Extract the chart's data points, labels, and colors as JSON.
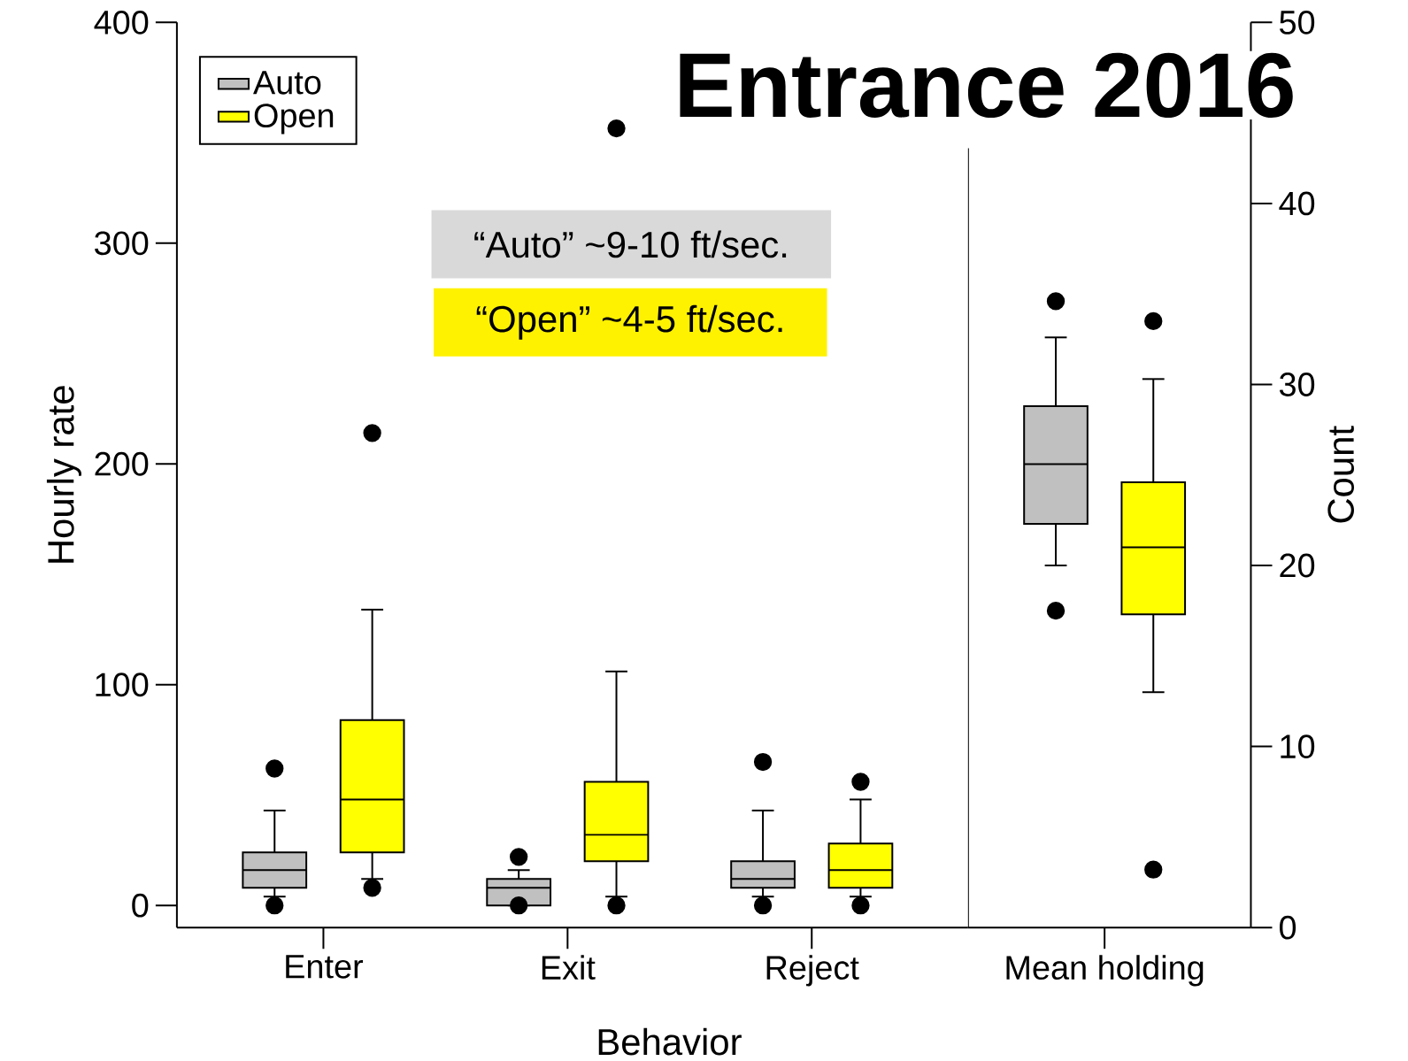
{
  "chart_data": [
    {
      "type": "box",
      "title": "Entrance 2016",
      "xlabel": "Behavior",
      "ylabel": "Hourly rate",
      "categories": [
        "Enter",
        "Exit",
        "Reject"
      ],
      "ylim": [
        -10,
        400
      ],
      "yticks": [
        0,
        100,
        200,
        300,
        400
      ],
      "legend": "top left",
      "annotations": [
        "“Auto” ~9-10 ft/sec.",
        "“Open” ~4-5 ft/sec."
      ],
      "series": [
        {
          "name": "Auto",
          "color": "#c0c0c0",
          "boxes": [
            {
              "low": 4,
              "q1": 8,
              "median": 16,
              "q3": 24,
              "high": 43,
              "outliers": [
                62,
                0
              ]
            },
            {
              "low": 0,
              "q1": 0,
              "median": 8,
              "q3": 12,
              "high": 16,
              "outliers": [
                22,
                0
              ]
            },
            {
              "low": 4,
              "q1": 8,
              "median": 12,
              "q3": 20,
              "high": 43,
              "outliers": [
                65,
                0
              ]
            }
          ]
        },
        {
          "name": "Open",
          "color": "#ffff00",
          "boxes": [
            {
              "low": 12,
              "q1": 24,
              "median": 48,
              "q3": 84,
              "high": 134,
              "outliers": [
                214,
                8
              ]
            },
            {
              "low": 4,
              "q1": 20,
              "median": 32,
              "q3": 56,
              "high": 106,
              "outliers": [
                352,
                0
              ]
            },
            {
              "low": 4,
              "q1": 8,
              "median": 16,
              "q3": 28,
              "high": 48,
              "outliers": [
                56,
                0
              ]
            }
          ]
        }
      ]
    },
    {
      "type": "box",
      "ylabel": "Count",
      "categories": [
        "Mean holding"
      ],
      "ylim": [
        0,
        50
      ],
      "yticks": [
        0,
        10,
        20,
        30,
        40,
        50
      ],
      "series": [
        {
          "color": "#c0c0c0",
          "boxes": [
            {
              "low": 20.0,
              "q1": 22.3,
              "median": 25.6,
              "q3": 28.8,
              "high": 32.6,
              "outliers": [
                34.6,
                17.5
              ]
            }
          ]
        },
        {
          "color": "#ffff00",
          "boxes": [
            {
              "low": 13.0,
              "q1": 17.3,
              "median": 21.0,
              "q3": 24.6,
              "high": 30.3,
              "outliers": [
                33.5,
                3.2
              ]
            }
          ]
        }
      ]
    }
  ]
}
